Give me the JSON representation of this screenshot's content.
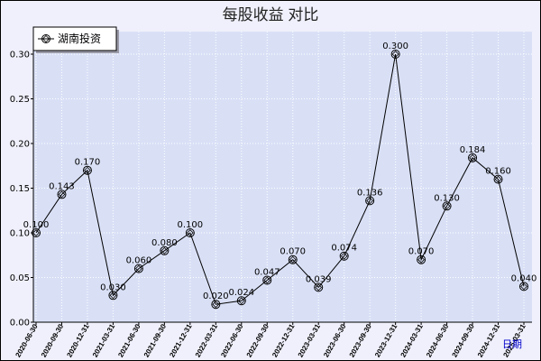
{
  "chart_data": {
    "type": "line",
    "title": "每股收益  对比",
    "xlabel": "日期",
    "ylabel": "",
    "categories": [
      "2020-06-30",
      "2020-09-30",
      "2020-12-31",
      "2021-03-31",
      "2021-06-30",
      "2021-09-30",
      "2021-12-31",
      "2022-03-31",
      "2022-06-30",
      "2022-09-30",
      "2022-12-31",
      "2023-03-31",
      "2023-06-30",
      "2023-09-30",
      "2023-12-31",
      "2024-03-31",
      "2024-06-30",
      "2024-09-30",
      "2024-12-31",
      "2025-03-31"
    ],
    "series": [
      {
        "name": "湖南投资",
        "values": [
          0.1,
          0.143,
          0.17,
          0.03,
          0.06,
          0.08,
          0.1,
          0.02,
          0.024,
          0.047,
          0.07,
          0.039,
          0.074,
          0.136,
          0.3,
          0.07,
          0.13,
          0.184,
          0.16,
          0.04
        ],
        "color": "#000000"
      }
    ],
    "yticks": [
      "0.00",
      "0.05",
      "0.10",
      "0.15",
      "0.20",
      "0.25",
      "0.30"
    ],
    "ylim": [
      0,
      0.3
    ],
    "grid": true,
    "legend": "top-left"
  },
  "colors": {
    "background": "#eff0fb",
    "plot": "#d9e0f6",
    "grid": "#ffffff",
    "axis": "#000000",
    "xlabel": "#0000cc"
  }
}
